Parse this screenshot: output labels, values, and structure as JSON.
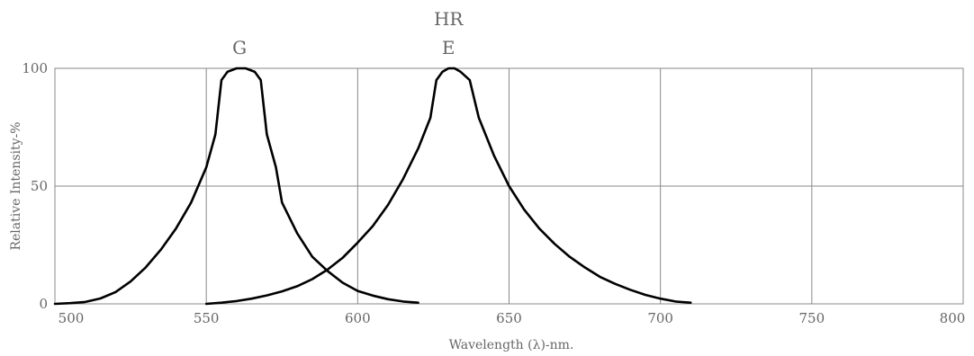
{
  "chart_data": {
    "type": "line",
    "xlabel": "Wavelength (λ)-nm.",
    "ylabel": "Relative Intensity-%",
    "xlim": [
      500,
      800
    ],
    "ylim": [
      0,
      100
    ],
    "grid": true,
    "x_ticks": [
      500,
      550,
      600,
      650,
      700,
      750,
      800
    ],
    "y_ticks": [
      0,
      50,
      100
    ],
    "series": [
      {
        "name": "G",
        "color": "#000000",
        "points": [
          [
            500,
            0
          ],
          [
            505,
            0.3
          ],
          [
            510,
            0.8
          ],
          [
            515,
            2.3
          ],
          [
            520,
            5
          ],
          [
            525,
            9.5
          ],
          [
            530,
            15.5
          ],
          [
            535,
            23
          ],
          [
            540,
            32
          ],
          [
            545,
            43
          ],
          [
            550,
            58
          ],
          [
            553,
            72
          ],
          [
            555,
            95
          ],
          [
            557,
            98.5
          ],
          [
            560,
            100
          ],
          [
            563,
            100
          ],
          [
            566,
            98.5
          ],
          [
            568,
            95
          ],
          [
            570,
            72
          ],
          [
            573,
            58
          ],
          [
            575,
            43
          ],
          [
            580,
            30
          ],
          [
            585,
            20
          ],
          [
            590,
            14
          ],
          [
            595,
            9
          ],
          [
            600,
            5.5
          ],
          [
            605,
            3.5
          ],
          [
            610,
            2
          ],
          [
            615,
            1
          ],
          [
            620,
            0.5
          ]
        ]
      },
      {
        "name": "HR\nE",
        "color": "#000000",
        "points": [
          [
            550,
            0
          ],
          [
            555,
            0.5
          ],
          [
            560,
            1.2
          ],
          [
            565,
            2.2
          ],
          [
            570,
            3.6
          ],
          [
            575,
            5.3
          ],
          [
            580,
            7.5
          ],
          [
            585,
            10.5
          ],
          [
            590,
            14.5
          ],
          [
            595,
            19.5
          ],
          [
            600,
            26
          ],
          [
            605,
            33
          ],
          [
            610,
            42
          ],
          [
            615,
            53
          ],
          [
            620,
            66
          ],
          [
            624,
            79
          ],
          [
            626,
            95
          ],
          [
            628,
            98.5
          ],
          [
            630,
            100
          ],
          [
            632,
            100
          ],
          [
            634,
            98.5
          ],
          [
            637,
            95
          ],
          [
            640,
            79
          ],
          [
            645,
            63
          ],
          [
            650,
            50
          ],
          [
            655,
            40
          ],
          [
            660,
            32
          ],
          [
            665,
            25.5
          ],
          [
            670,
            20
          ],
          [
            675,
            15.5
          ],
          [
            680,
            11.5
          ],
          [
            685,
            8.5
          ],
          [
            690,
            6
          ],
          [
            695,
            3.8
          ],
          [
            700,
            2.2
          ],
          [
            705,
            1
          ],
          [
            710,
            0.5
          ]
        ]
      }
    ],
    "series_labels": [
      {
        "lines": [
          "G"
        ],
        "x": 561
      },
      {
        "lines": [
          "HR",
          "E"
        ],
        "x": 630
      }
    ]
  }
}
